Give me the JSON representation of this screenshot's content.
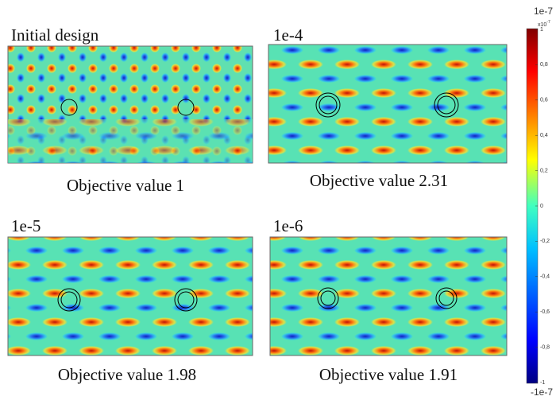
{
  "panels": [
    {
      "title": "Initial design",
      "caption": "Objective value 1"
    },
    {
      "title": "1e-4",
      "caption": "Objective value 2.31"
    },
    {
      "title": "1e-5",
      "caption": "Objective value 1.98"
    },
    {
      "title": "1e-6",
      "caption": "Objective value 1.91"
    }
  ],
  "colorbar": {
    "top_label": "1e-7",
    "bottom_label": "-1e-7",
    "scale_label": "x10",
    "scale_exponent": "-7",
    "ticks": [
      "1",
      "0,8",
      "0,6",
      "0,4",
      "0,2",
      "0",
      "-0,2",
      "-0,4",
      "-0,6",
      "-0,8",
      "-1"
    ]
  }
}
